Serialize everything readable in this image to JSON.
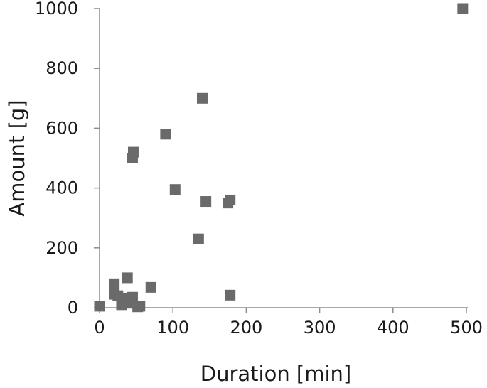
{
  "chart_data": {
    "type": "scatter",
    "title": "",
    "xlabel": "Duration [min]",
    "ylabel": "Amount [g]",
    "xlim": [
      0,
      500
    ],
    "ylim": [
      0,
      1000
    ],
    "xticks": [
      0,
      100,
      200,
      300,
      400,
      500
    ],
    "yticks": [
      0,
      200,
      400,
      600,
      800,
      1000
    ],
    "grid": false,
    "legend": "none",
    "marker": "square",
    "marker_color": "#6a6a6a",
    "points": [
      {
        "x": 0,
        "y": 5
      },
      {
        "x": 20,
        "y": 80
      },
      {
        "x": 20,
        "y": 45
      },
      {
        "x": 25,
        "y": 40
      },
      {
        "x": 30,
        "y": 10
      },
      {
        "x": 35,
        "y": 30
      },
      {
        "x": 38,
        "y": 100
      },
      {
        "x": 42,
        "y": 15
      },
      {
        "x": 45,
        "y": 35
      },
      {
        "x": 45,
        "y": 500
      },
      {
        "x": 46,
        "y": 520
      },
      {
        "x": 52,
        "y": 3
      },
      {
        "x": 55,
        "y": 5
      },
      {
        "x": 70,
        "y": 68
      },
      {
        "x": 90,
        "y": 580
      },
      {
        "x": 103,
        "y": 395
      },
      {
        "x": 135,
        "y": 230
      },
      {
        "x": 140,
        "y": 700
      },
      {
        "x": 145,
        "y": 355
      },
      {
        "x": 175,
        "y": 350
      },
      {
        "x": 178,
        "y": 360
      },
      {
        "x": 178,
        "y": 42
      },
      {
        "x": 495,
        "y": 1000
      }
    ]
  }
}
